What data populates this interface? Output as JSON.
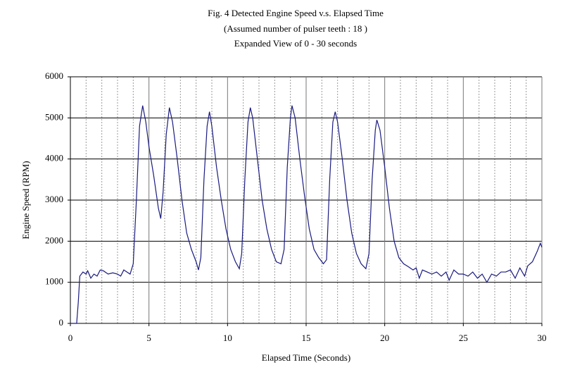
{
  "chart_data": {
    "type": "line",
    "title": "Fig. 4  Detected Engine Speed  v.s. Elapsed Time",
    "subtitle": "(Assumed number of pulser teeth : 18 )",
    "subtitle2": "Expanded View of 0 - 30 seconds",
    "xlabel": "Elapsed Time (Seconds)",
    "ylabel": "Engine Speed (RPM)",
    "color": "#1a1a80",
    "xlim": [
      0,
      30
    ],
    "ylim": [
      0,
      6000
    ],
    "xticks": [
      0,
      5,
      10,
      15,
      20,
      25,
      30
    ],
    "yticks": [
      0,
      1000,
      2000,
      3000,
      4000,
      5000,
      6000
    ],
    "x_minor_grid": [
      1,
      2,
      3,
      4,
      6,
      7,
      8,
      9,
      11,
      12,
      13,
      14,
      16,
      17,
      18,
      19,
      21,
      22,
      23,
      24,
      26,
      27,
      28,
      29
    ],
    "grid": true,
    "x": [
      0,
      0.4,
      0.5,
      0.6,
      0.8,
      1.0,
      1.1,
      1.3,
      1.5,
      1.7,
      1.9,
      2.1,
      2.4,
      2.7,
      3.0,
      3.2,
      3.4,
      3.6,
      3.8,
      4.0,
      4.2,
      4.4,
      4.6,
      4.8,
      5.0,
      5.3,
      5.6,
      5.75,
      5.9,
      6.1,
      6.3,
      6.5,
      6.8,
      7.1,
      7.4,
      7.7,
      8.0,
      8.15,
      8.3,
      8.5,
      8.7,
      8.85,
      9.0,
      9.3,
      9.6,
      9.9,
      10.2,
      10.5,
      10.75,
      10.9,
      11.1,
      11.3,
      11.45,
      11.6,
      11.9,
      12.2,
      12.5,
      12.8,
      13.1,
      13.4,
      13.6,
      13.8,
      14.0,
      14.1,
      14.3,
      14.6,
      14.9,
      15.2,
      15.5,
      15.8,
      16.1,
      16.3,
      16.5,
      16.7,
      16.85,
      17.0,
      17.3,
      17.6,
      17.9,
      18.2,
      18.5,
      18.8,
      19.0,
      19.2,
      19.4,
      19.5,
      19.7,
      20.0,
      20.3,
      20.6,
      20.9,
      21.2,
      21.5,
      21.8,
      22.0,
      22.2,
      22.4,
      22.7,
      23.0,
      23.3,
      23.6,
      23.9,
      24.1,
      24.4,
      24.7,
      25.0,
      25.3,
      25.6,
      25.9,
      26.2,
      26.5,
      26.8,
      27.1,
      27.4,
      27.7,
      28.0,
      28.3,
      28.6,
      28.9,
      29.1,
      29.4,
      29.7,
      29.9,
      30.0
    ],
    "values": [
      0,
      0,
      500,
      1150,
      1250,
      1200,
      1280,
      1100,
      1200,
      1150,
      1300,
      1280,
      1200,
      1230,
      1200,
      1150,
      1300,
      1250,
      1200,
      1450,
      3000,
      4800,
      5300,
      4900,
      4300,
      3600,
      2800,
      2550,
      3200,
      4600,
      5250,
      4900,
      4000,
      3000,
      2200,
      1800,
      1500,
      1300,
      1600,
      3500,
      4800,
      5150,
      4800,
      3800,
      3000,
      2300,
      1800,
      1500,
      1330,
      1700,
      3500,
      4900,
      5250,
      5000,
      4000,
      3000,
      2300,
      1800,
      1500,
      1450,
      1800,
      3800,
      5000,
      5300,
      5000,
      4000,
      3100,
      2300,
      1800,
      1600,
      1450,
      1550,
      3500,
      4900,
      5150,
      4900,
      4000,
      3000,
      2200,
      1700,
      1450,
      1330,
      1700,
      3500,
      4700,
      4950,
      4700,
      3800,
      2800,
      2000,
      1600,
      1450,
      1380,
      1300,
      1350,
      1100,
      1300,
      1250,
      1200,
      1250,
      1150,
      1250,
      1050,
      1300,
      1200,
      1200,
      1150,
      1250,
      1100,
      1200,
      1000,
      1200,
      1150,
      1250,
      1250,
      1300,
      1100,
      1350,
      1150,
      1400,
      1500,
      1750,
      1950,
      1850
    ]
  }
}
